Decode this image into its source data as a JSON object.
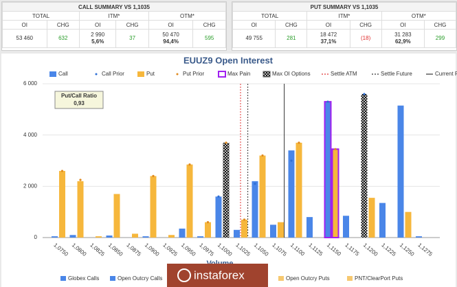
{
  "call_summary": {
    "title": "CALL SUMMARY VS 1,1035",
    "headers": [
      "TOTAL",
      "ITM*",
      "OTM*"
    ],
    "subheaders": [
      "OI",
      "CHG",
      "OI",
      "CHG",
      "OI",
      "CHG"
    ],
    "cells": [
      [
        "53 460"
      ],
      [
        "632"
      ],
      [
        "2 990",
        "5,6%"
      ],
      [
        "37"
      ],
      [
        "50 470",
        "94,4%"
      ],
      [
        "595"
      ]
    ]
  },
  "put_summary": {
    "title": "PUT SUMMARY VS 1,1035",
    "headers": [
      "TOTAL",
      "ITM*",
      "OTM*"
    ],
    "subheaders": [
      "OI",
      "CHG",
      "OI",
      "CHG",
      "OI",
      "CHG"
    ],
    "cells": [
      [
        "49 755"
      ],
      [
        "281"
      ],
      [
        "18 472",
        "37,1%"
      ],
      [
        "(18)"
      ],
      [
        "31 283",
        "62,9%"
      ],
      [
        "299"
      ]
    ]
  },
  "chart_data": {
    "type": "bar",
    "title": "EUUZ9 Open Interest",
    "categories": [
      "1,0750",
      "1,0800",
      "1,0825",
      "1,0850",
      "1,0875",
      "1,0900",
      "1,0925",
      "1,0950",
      "1,0975",
      "1,1000",
      "1,1025",
      "1,1050",
      "1,1075",
      "1,1100",
      "1,1125",
      "1,1150",
      "1,1175",
      "1,1200",
      "1,1225",
      "1,1250",
      "1,1275"
    ],
    "series": [
      {
        "name": "Call",
        "color": "#4a86e8",
        "values": [
          50,
          100,
          0,
          80,
          0,
          50,
          0,
          350,
          50,
          1600,
          300,
          2200,
          500,
          3400,
          800,
          5300,
          850,
          5600,
          1350,
          5150,
          50
        ]
      },
      {
        "name": "Call Prior",
        "color": "#2f6fd6",
        "values": [
          null,
          null,
          null,
          null,
          null,
          null,
          null,
          null,
          null,
          1600,
          null,
          2100,
          null,
          3000,
          null,
          5300,
          null,
          5600,
          null,
          null,
          null
        ]
      },
      {
        "name": "Put",
        "color": "#f6b73c",
        "values": [
          2600,
          2200,
          50,
          1700,
          150,
          2400,
          100,
          2850,
          600,
          3700,
          700,
          3200,
          600,
          3700,
          0,
          3450,
          0,
          1550,
          0,
          1000,
          0
        ]
      },
      {
        "name": "Put Prior",
        "color": "#e08a1e",
        "values": [
          2600,
          2250,
          null,
          null,
          null,
          2400,
          null,
          2850,
          600,
          3700,
          700,
          3200,
          null,
          3700,
          null,
          3450,
          null,
          null,
          null,
          null,
          null
        ]
      }
    ],
    "max_pain": {
      "name": "Max Pain",
      "category": "1,1150",
      "color": "#a020f0"
    },
    "max_oi": {
      "name": "Max OI Options",
      "call": "1,1200",
      "put": "1,1000"
    },
    "lines": [
      {
        "name": "Settle ATM",
        "x": 1.1025,
        "color": "#e03030",
        "dash": "dotted"
      },
      {
        "name": "Settle Future",
        "x": 1.1035,
        "color": "#333333",
        "dash": "dotted"
      },
      {
        "name": "Current Future",
        "x": 1.1085,
        "color": "#333333",
        "dash": "solid"
      }
    ],
    "ylim": [
      0,
      6000
    ],
    "yticks": [
      0,
      {
        "value": 2000,
        "label": "2 000"
      },
      {
        "value": 4000,
        "label": "4 000"
      },
      {
        "value": 6000,
        "label": "6 000"
      }
    ],
    "grid": true,
    "put_call_ratio": {
      "label": "Put/Call Ratio",
      "value": 0.93,
      "value_label": "0,93"
    },
    "xlabel": "Volume",
    "volume_legend": [
      "Globex Calls",
      "Open Outcry Calls",
      "Open Outcry Puts",
      "PNT/ClearPort Puts"
    ]
  },
  "watermark": "instaforex"
}
